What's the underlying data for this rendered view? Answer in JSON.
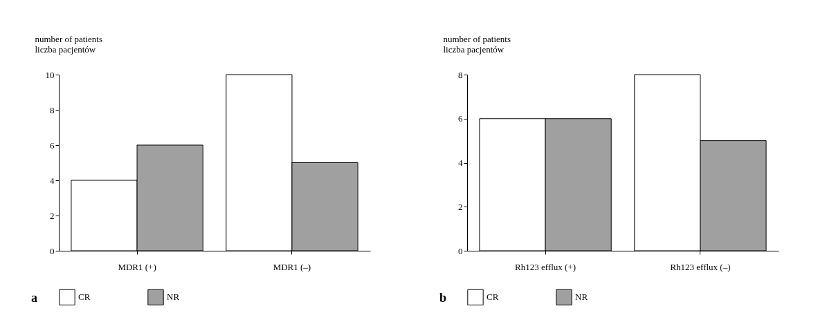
{
  "chart_data": [
    {
      "type": "bar",
      "ylabel": "number of patients\nliczba pacjentów",
      "categories": [
        "MDR1 (+)",
        "MDR1 (–)"
      ],
      "series": [
        {
          "name": "CR",
          "color": "#ffffff",
          "values": [
            4,
            10
          ]
        },
        {
          "name": "NR",
          "color": "#a0a0a0",
          "values": [
            6,
            5
          ]
        }
      ],
      "ylim": [
        0,
        10
      ],
      "yticks": [
        0,
        2,
        4,
        6,
        8,
        10
      ],
      "grid": false,
      "legend": "bottom",
      "annotations": [
        "a"
      ]
    },
    {
      "type": "bar",
      "ylabel": "number of patients\nliczba pacjentów",
      "categories": [
        "Rh123 efflux (+)",
        "Rh123 efflux (–)"
      ],
      "series": [
        {
          "name": "CR",
          "color": "#ffffff",
          "values": [
            6,
            8
          ]
        },
        {
          "name": "NR",
          "color": "#a0a0a0",
          "values": [
            6,
            5
          ]
        }
      ],
      "ylim": [
        0,
        8
      ],
      "yticks": [
        0,
        2,
        4,
        6,
        8
      ],
      "grid": false,
      "legend": "bottom",
      "annotations": [
        "b"
      ]
    }
  ]
}
